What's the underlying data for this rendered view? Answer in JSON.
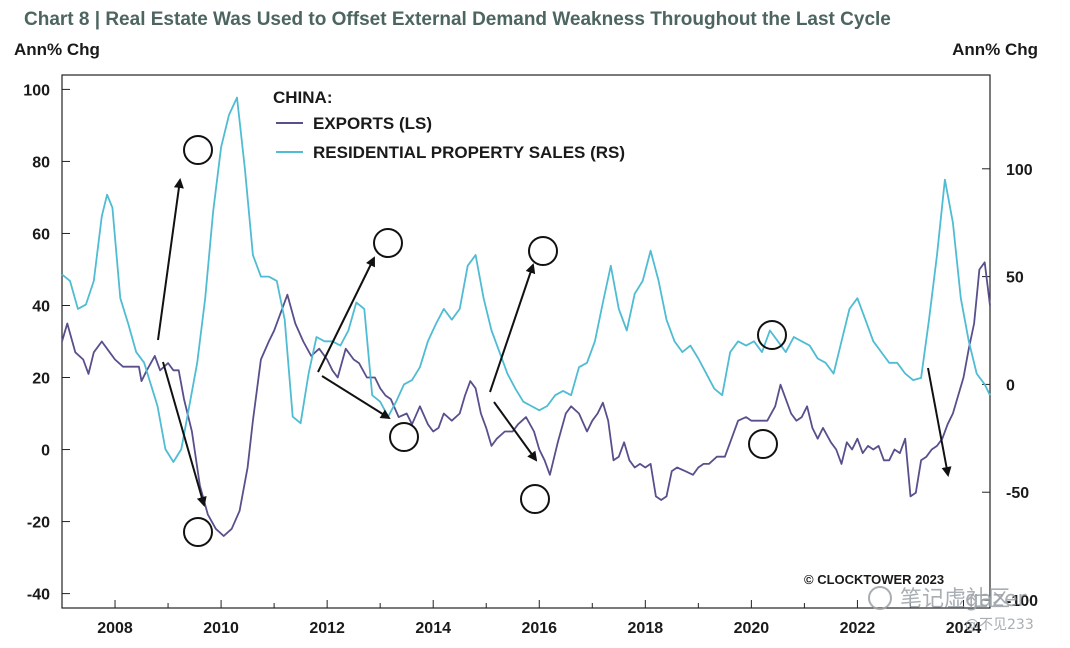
{
  "chart_data": {
    "type": "line",
    "title": "Chart 8 | Real Estate Was Used to Offset External Demand Weakness Throughout the Last Cycle",
    "ylabel_left": "Ann% Chg",
    "ylabel_right": "Ann% Chg",
    "legend_title": "CHINA:",
    "x_ticks": [
      "2008",
      "2010",
      "2012",
      "2014",
      "2016",
      "2018",
      "2020",
      "2022",
      "2024"
    ],
    "x_range": [
      2007.0,
      2024.5
    ],
    "y_left": {
      "range": [
        -44,
        104
      ],
      "ticks": [
        -40,
        -20,
        0,
        20,
        40,
        60,
        80,
        100
      ]
    },
    "y_right": {
      "range": [
        -103.7,
        143.5
      ],
      "ticks": [
        -100,
        -50,
        0,
        50,
        100
      ],
      "tick_labels": [
        "-100",
        "-50",
        "0",
        "50",
        "100"
      ]
    },
    "series": [
      {
        "name": "EXPORTS (LS)",
        "axis": "left",
        "color": "#5a4e8c",
        "points": [
          [
            2007.0,
            30
          ],
          [
            2007.1,
            35
          ],
          [
            2007.25,
            27
          ],
          [
            2007.4,
            25
          ],
          [
            2007.5,
            21
          ],
          [
            2007.6,
            27
          ],
          [
            2007.75,
            30
          ],
          [
            2007.9,
            27
          ],
          [
            2008.0,
            25
          ],
          [
            2008.15,
            23
          ],
          [
            2008.3,
            23
          ],
          [
            2008.45,
            23
          ],
          [
            2008.5,
            19
          ],
          [
            2008.6,
            22
          ],
          [
            2008.75,
            26
          ],
          [
            2008.85,
            22
          ],
          [
            2009.0,
            24
          ],
          [
            2009.1,
            22
          ],
          [
            2009.2,
            22
          ],
          [
            2009.3,
            14
          ],
          [
            2009.45,
            5
          ],
          [
            2009.6,
            -10
          ],
          [
            2009.75,
            -18
          ],
          [
            2009.9,
            -22
          ],
          [
            2010.05,
            -24
          ],
          [
            2010.2,
            -22
          ],
          [
            2010.35,
            -17
          ],
          [
            2010.5,
            -5
          ],
          [
            2010.6,
            8
          ],
          [
            2010.75,
            25
          ],
          [
            2010.9,
            30
          ],
          [
            2011.0,
            33
          ],
          [
            2011.1,
            37
          ],
          [
            2011.25,
            43
          ],
          [
            2011.4,
            35
          ],
          [
            2011.55,
            30
          ],
          [
            2011.7,
            26
          ],
          [
            2011.85,
            28
          ],
          [
            2012.0,
            25
          ],
          [
            2012.1,
            22
          ],
          [
            2012.2,
            20
          ],
          [
            2012.35,
            28
          ],
          [
            2012.5,
            25
          ],
          [
            2012.6,
            24
          ],
          [
            2012.75,
            20
          ],
          [
            2012.9,
            20
          ],
          [
            2013.0,
            17
          ],
          [
            2013.1,
            15
          ],
          [
            2013.2,
            14
          ],
          [
            2013.35,
            9
          ],
          [
            2013.5,
            10
          ],
          [
            2013.6,
            7
          ],
          [
            2013.75,
            12
          ],
          [
            2013.9,
            7
          ],
          [
            2014.0,
            5
          ],
          [
            2014.1,
            6
          ],
          [
            2014.2,
            10
          ],
          [
            2014.35,
            8
          ],
          [
            2014.5,
            10
          ],
          [
            2014.6,
            15
          ],
          [
            2014.7,
            19
          ],
          [
            2014.8,
            17
          ],
          [
            2014.9,
            10
          ],
          [
            2015.0,
            6
          ],
          [
            2015.1,
            1
          ],
          [
            2015.2,
            3
          ],
          [
            2015.35,
            5
          ],
          [
            2015.5,
            5
          ],
          [
            2015.6,
            7
          ],
          [
            2015.75,
            9
          ],
          [
            2015.9,
            5
          ],
          [
            2016.0,
            0
          ],
          [
            2016.1,
            -3
          ],
          [
            2016.2,
            -7
          ],
          [
            2016.35,
            2
          ],
          [
            2016.5,
            10
          ],
          [
            2016.6,
            12
          ],
          [
            2016.75,
            10
          ],
          [
            2016.9,
            5
          ],
          [
            2017.0,
            8
          ],
          [
            2017.1,
            10
          ],
          [
            2017.2,
            13
          ],
          [
            2017.3,
            8
          ],
          [
            2017.4,
            -3
          ],
          [
            2017.5,
            -2
          ],
          [
            2017.6,
            2
          ],
          [
            2017.7,
            -3
          ],
          [
            2017.8,
            -5
          ],
          [
            2017.9,
            -4
          ],
          [
            2018.0,
            -5
          ],
          [
            2018.1,
            -4
          ],
          [
            2018.2,
            -13
          ],
          [
            2018.3,
            -14
          ],
          [
            2018.4,
            -13
          ],
          [
            2018.5,
            -6
          ],
          [
            2018.6,
            -5
          ],
          [
            2018.75,
            -6
          ],
          [
            2018.9,
            -7
          ],
          [
            2019.0,
            -5
          ],
          [
            2019.1,
            -4
          ],
          [
            2019.2,
            -4
          ],
          [
            2019.35,
            -2
          ],
          [
            2019.5,
            -2
          ],
          [
            2019.6,
            2
          ],
          [
            2019.75,
            8
          ],
          [
            2019.9,
            9
          ],
          [
            2020.0,
            8
          ],
          [
            2020.1,
            8
          ],
          [
            2020.2,
            8
          ],
          [
            2020.3,
            8
          ],
          [
            2020.45,
            12
          ],
          [
            2020.55,
            18
          ],
          [
            2020.65,
            14
          ],
          [
            2020.75,
            10
          ],
          [
            2020.85,
            8
          ],
          [
            2020.95,
            9
          ],
          [
            2021.05,
            12
          ],
          [
            2021.15,
            6
          ],
          [
            2021.25,
            3
          ],
          [
            2021.35,
            6
          ],
          [
            2021.5,
            2
          ],
          [
            2021.6,
            0
          ],
          [
            2021.7,
            -4
          ],
          [
            2021.8,
            2
          ],
          [
            2021.9,
            0
          ],
          [
            2022.0,
            3
          ],
          [
            2022.1,
            -1
          ],
          [
            2022.2,
            1
          ],
          [
            2022.3,
            0
          ],
          [
            2022.4,
            1
          ],
          [
            2022.5,
            -3
          ],
          [
            2022.6,
            -3
          ],
          [
            2022.7,
            0
          ],
          [
            2022.8,
            -1
          ],
          [
            2022.9,
            3
          ],
          [
            2023.0,
            -13
          ],
          [
            2023.1,
            -12
          ],
          [
            2023.2,
            -3
          ],
          [
            2023.3,
            -2
          ],
          [
            2023.4,
            0
          ],
          [
            2023.5,
            1
          ],
          [
            2023.6,
            3
          ],
          [
            2023.7,
            7
          ],
          [
            2023.8,
            10
          ],
          [
            2023.9,
            15
          ],
          [
            2024.0,
            20
          ],
          [
            2024.1,
            28
          ],
          [
            2024.2,
            35
          ],
          [
            2024.3,
            50
          ],
          [
            2024.4,
            52
          ],
          [
            2024.5,
            40
          ]
        ],
        "note": "x positions are calendar years; series spans the plotted window"
      },
      {
        "name": "RESIDENTIAL PROPERTY SALES (RS)",
        "axis": "right",
        "color": "#4fbcd3",
        "points": [
          [
            2007.0,
            51
          ],
          [
            2007.15,
            48
          ],
          [
            2007.3,
            35
          ],
          [
            2007.45,
            37
          ],
          [
            2007.6,
            48
          ],
          [
            2007.75,
            78
          ],
          [
            2007.85,
            88
          ],
          [
            2007.95,
            82
          ],
          [
            2008.1,
            40
          ],
          [
            2008.25,
            28
          ],
          [
            2008.4,
            15
          ],
          [
            2008.55,
            10
          ],
          [
            2008.65,
            2
          ],
          [
            2008.8,
            -10
          ],
          [
            2008.95,
            -30
          ],
          [
            2009.1,
            -36
          ],
          [
            2009.25,
            -30
          ],
          [
            2009.4,
            -10
          ],
          [
            2009.55,
            10
          ],
          [
            2009.7,
            40
          ],
          [
            2009.85,
            80
          ],
          [
            2010.0,
            110
          ],
          [
            2010.15,
            125
          ],
          [
            2010.3,
            133
          ],
          [
            2010.45,
            100
          ],
          [
            2010.6,
            60
          ],
          [
            2010.75,
            50
          ],
          [
            2010.9,
            50
          ],
          [
            2011.05,
            48
          ],
          [
            2011.2,
            30
          ],
          [
            2011.35,
            -15
          ],
          [
            2011.5,
            -18
          ],
          [
            2011.65,
            5
          ],
          [
            2011.8,
            22
          ],
          [
            2011.95,
            20
          ],
          [
            2012.1,
            20
          ],
          [
            2012.25,
            18
          ],
          [
            2012.4,
            25
          ],
          [
            2012.55,
            38
          ],
          [
            2012.7,
            35
          ],
          [
            2012.85,
            -5
          ],
          [
            2013.0,
            -8
          ],
          [
            2013.15,
            -15
          ],
          [
            2013.3,
            -8
          ],
          [
            2013.45,
            0
          ],
          [
            2013.6,
            2
          ],
          [
            2013.75,
            8
          ],
          [
            2013.9,
            20
          ],
          [
            2014.05,
            28
          ],
          [
            2014.2,
            35
          ],
          [
            2014.35,
            30
          ],
          [
            2014.5,
            35
          ],
          [
            2014.65,
            55
          ],
          [
            2014.8,
            60
          ],
          [
            2014.95,
            40
          ],
          [
            2015.1,
            25
          ],
          [
            2015.25,
            15
          ],
          [
            2015.4,
            5
          ],
          [
            2015.55,
            -2
          ],
          [
            2015.7,
            -8
          ],
          [
            2015.85,
            -10
          ],
          [
            2016.0,
            -12
          ],
          [
            2016.15,
            -10
          ],
          [
            2016.3,
            -5
          ],
          [
            2016.45,
            -3
          ],
          [
            2016.6,
            -5
          ],
          [
            2016.75,
            8
          ],
          [
            2016.9,
            10
          ],
          [
            2017.05,
            20
          ],
          [
            2017.2,
            38
          ],
          [
            2017.35,
            55
          ],
          [
            2017.5,
            35
          ],
          [
            2017.65,
            25
          ],
          [
            2017.8,
            42
          ],
          [
            2017.95,
            48
          ],
          [
            2018.1,
            62
          ],
          [
            2018.25,
            48
          ],
          [
            2018.4,
            30
          ],
          [
            2018.55,
            20
          ],
          [
            2018.7,
            15
          ],
          [
            2018.85,
            18
          ],
          [
            2019.0,
            12
          ],
          [
            2019.15,
            5
          ],
          [
            2019.3,
            -2
          ],
          [
            2019.45,
            -5
          ],
          [
            2019.6,
            15
          ],
          [
            2019.75,
            20
          ],
          [
            2019.9,
            18
          ],
          [
            2020.05,
            20
          ],
          [
            2020.2,
            15
          ],
          [
            2020.35,
            25
          ],
          [
            2020.5,
            20
          ],
          [
            2020.65,
            15
          ],
          [
            2020.8,
            22
          ],
          [
            2020.95,
            20
          ],
          [
            2021.1,
            18
          ],
          [
            2021.25,
            12
          ],
          [
            2021.4,
            10
          ],
          [
            2021.55,
            5
          ],
          [
            2021.7,
            20
          ],
          [
            2021.85,
            35
          ],
          [
            2022.0,
            40
          ],
          [
            2022.15,
            30
          ],
          [
            2022.3,
            20
          ],
          [
            2022.45,
            15
          ],
          [
            2022.6,
            10
          ],
          [
            2022.75,
            10
          ],
          [
            2022.9,
            5
          ],
          [
            2023.05,
            2
          ],
          [
            2023.2,
            3
          ],
          [
            2023.35,
            30
          ],
          [
            2023.5,
            60
          ],
          [
            2023.65,
            95
          ],
          [
            2023.8,
            75
          ],
          [
            2023.95,
            40
          ],
          [
            2024.1,
            20
          ],
          [
            2024.25,
            5
          ],
          [
            2024.4,
            0
          ],
          [
            2024.5,
            -5
          ]
        ],
        "note": "x positions are calendar years; series spans the plotted window"
      }
    ],
    "annotations": {
      "credit": "© CLOCKTOWER 2023",
      "watermark_main": "笔记虚社区",
      "watermark_sub": "@不见233",
      "watermark_overlay": "gazer"
    }
  }
}
